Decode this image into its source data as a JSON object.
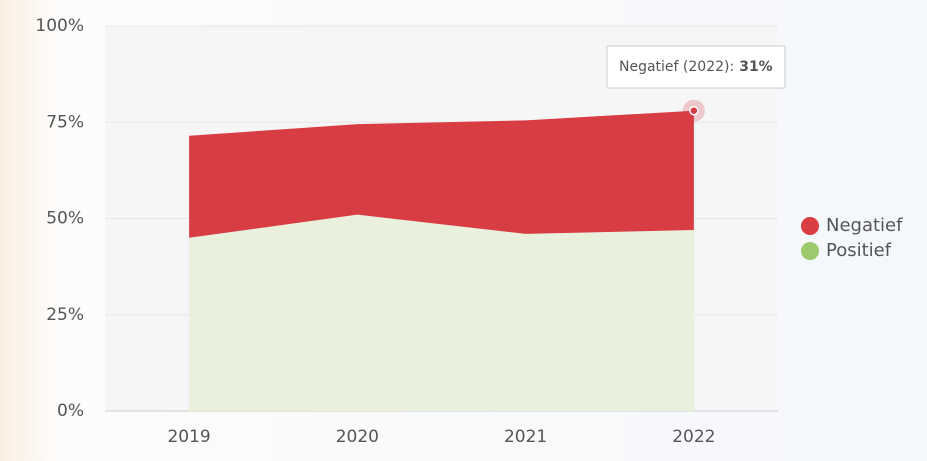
{
  "chart_data": {
    "type": "stacked_area",
    "categories": [
      "2019",
      "2020",
      "2021",
      "2022"
    ],
    "series": [
      {
        "name": "Negatief",
        "color": "#d93d44",
        "legend_color": "#d93d44",
        "values": [
          26.5,
          23.5,
          29.5,
          31
        ]
      },
      {
        "name": "Positief",
        "color": "#e9f0dc",
        "legend_color": "#9cc96b",
        "values": [
          45,
          51,
          46,
          47
        ]
      }
    ],
    "ylim": [
      0,
      100
    ],
    "yticks": [
      {
        "value": 0,
        "label": "0%"
      },
      {
        "value": 25,
        "label": "25%"
      },
      {
        "value": 50,
        "label": "50%"
      },
      {
        "value": 75,
        "label": "75%"
      },
      {
        "value": 100,
        "label": "100%"
      }
    ],
    "grid": true,
    "legend": "right",
    "tooltip": {
      "text": "Negatief (2022):",
      "value_label": "31%"
    }
  }
}
